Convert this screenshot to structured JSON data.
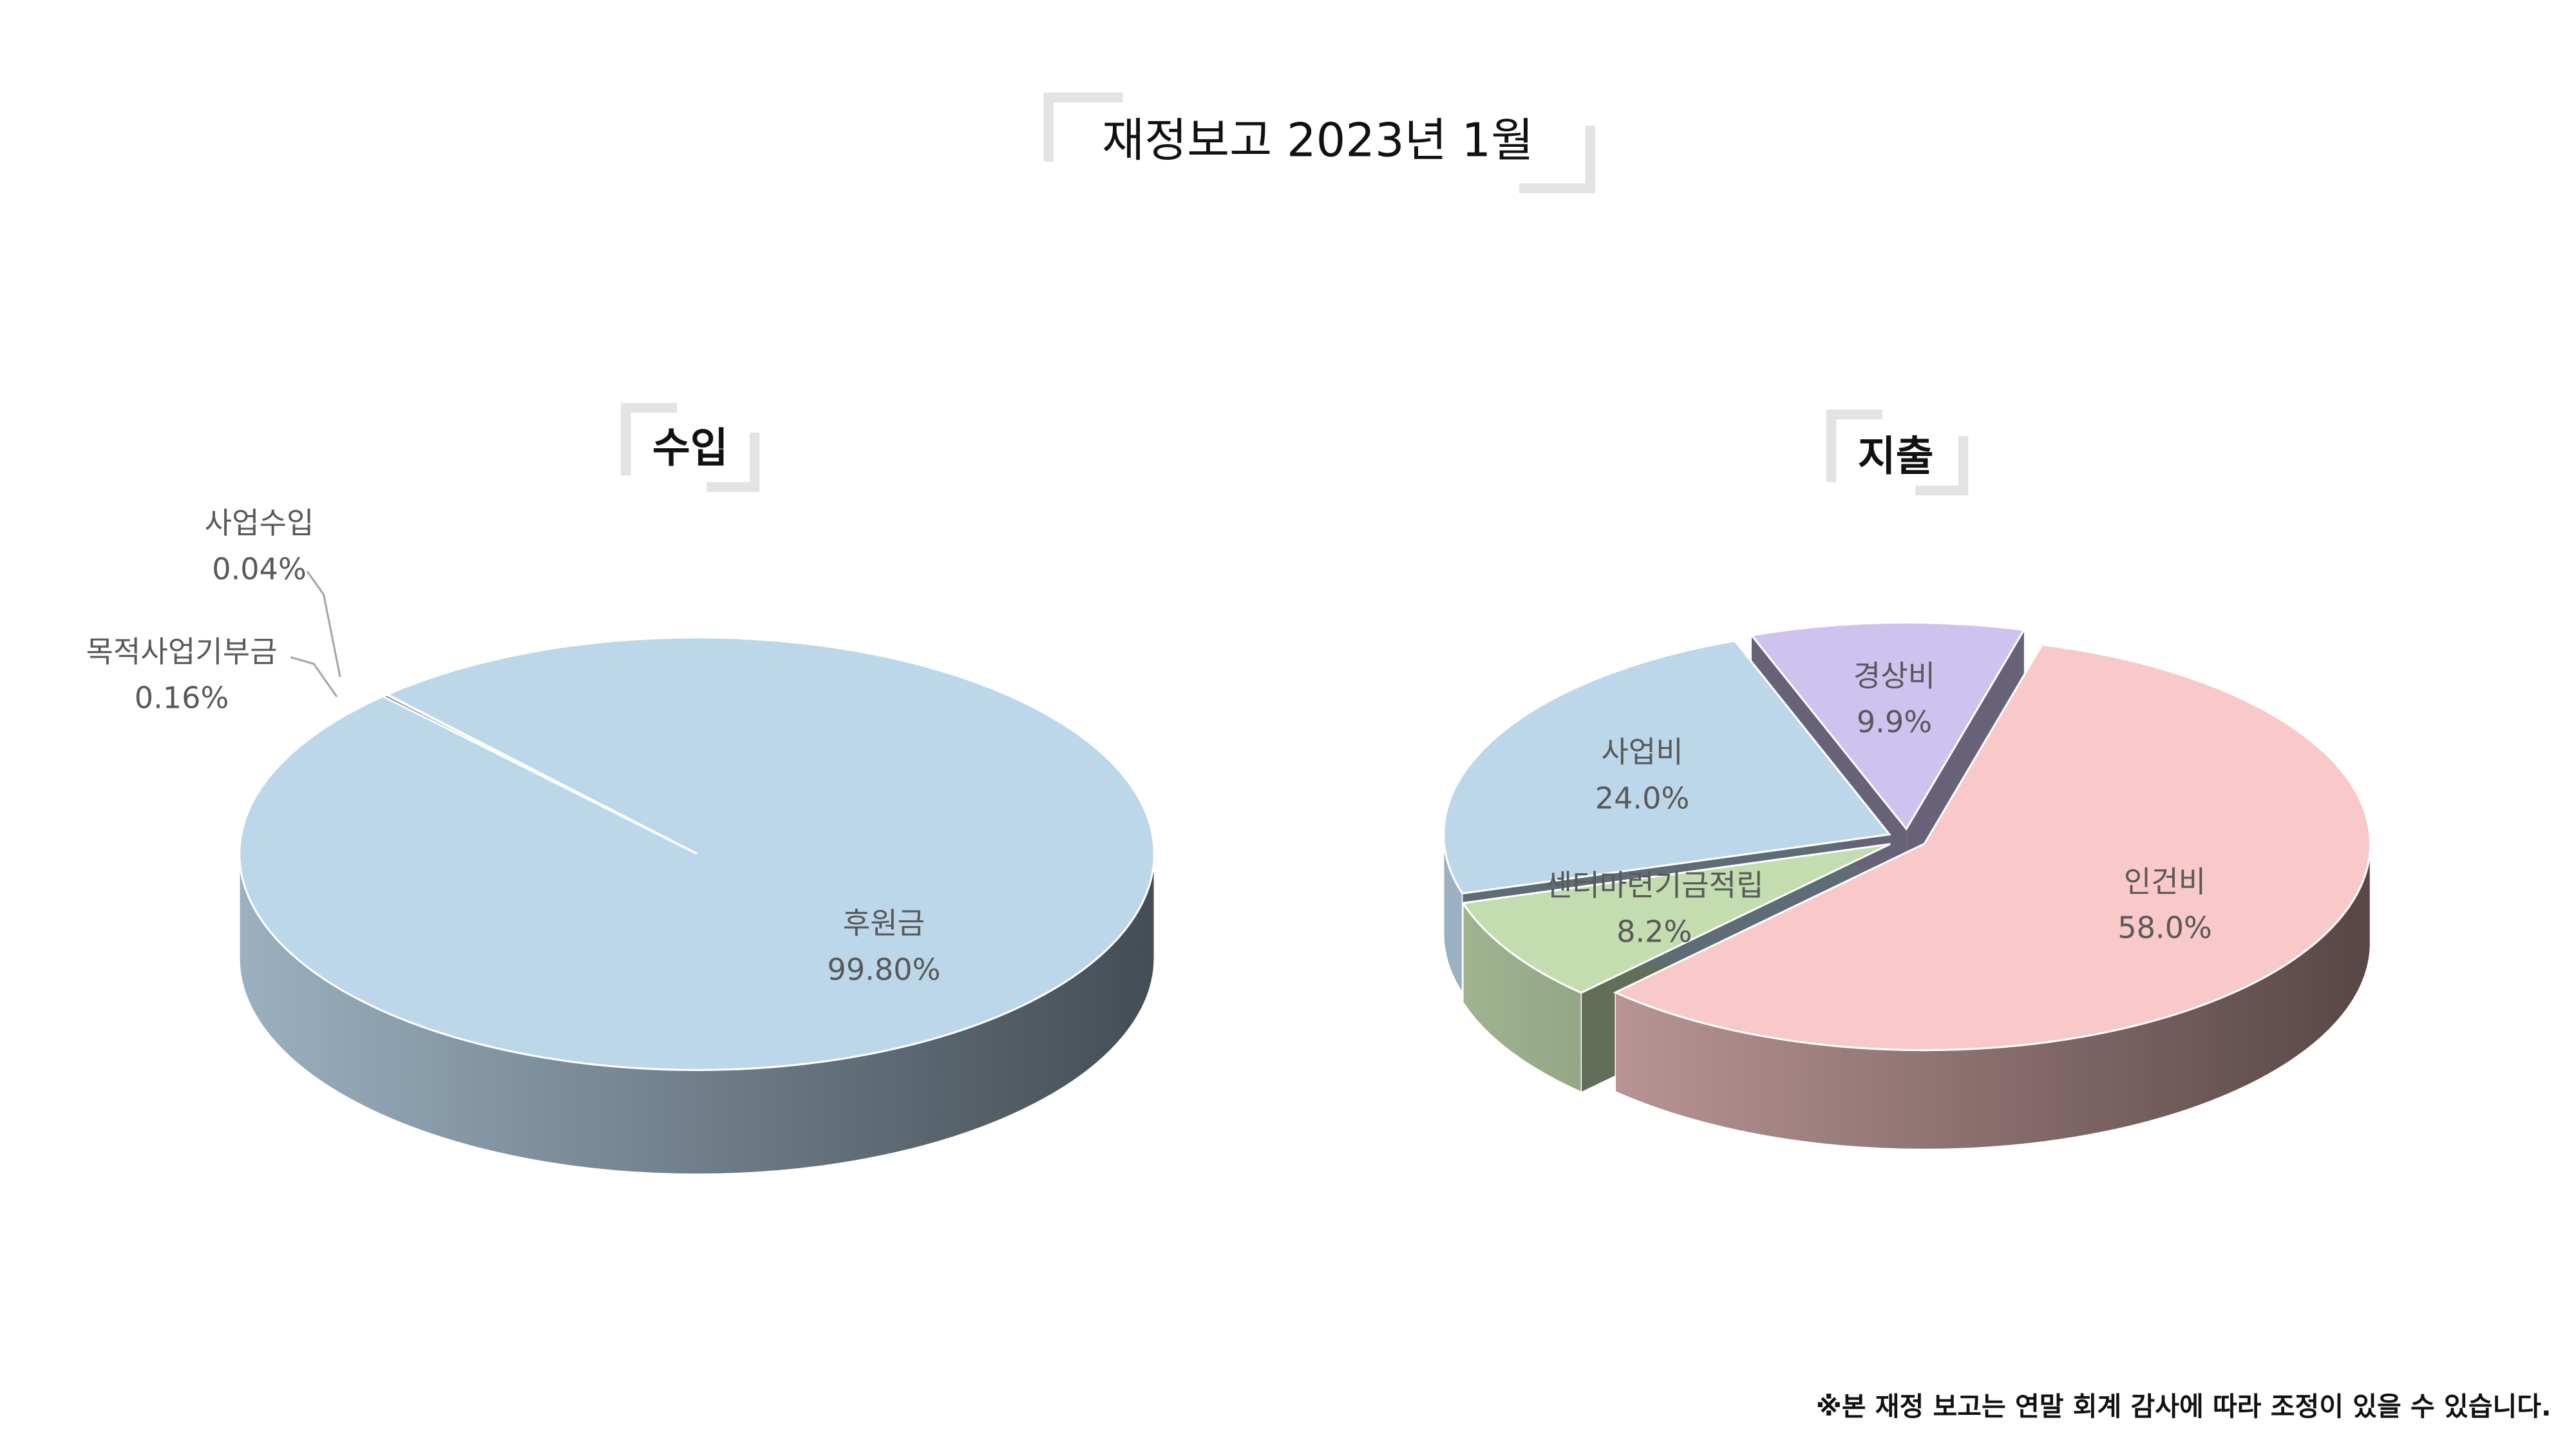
{
  "title": "재정보고 2023년 1월",
  "footnote": "※본 재정 보고는 연말 회계 감사에 따라 조정이 있을 수 있습니다.",
  "chart_data": [
    {
      "type": "pie",
      "title": "수입",
      "categories": [
        "후원금",
        "목적사업기부금",
        "사업수입"
      ],
      "values": [
        99.8,
        0.16,
        0.04
      ],
      "value_labels": [
        "99.80%",
        "0.16%",
        "0.04%"
      ],
      "colors": [
        "#bdd7ea",
        "#4a4558",
        "#8a8fa0"
      ]
    },
    {
      "type": "pie",
      "title": "지출",
      "categories": [
        "인건비",
        "센터마련기금적립",
        "사업비",
        "경상비"
      ],
      "values": [
        58.0,
        8.2,
        24.0,
        9.9
      ],
      "value_labels": [
        "58.0%",
        "8.2%",
        "24.0%",
        "9.9%"
      ],
      "colors": [
        "#f9c8c8",
        "#c3dcb0",
        "#bdd7ea",
        "#cdc3ee"
      ]
    }
  ]
}
